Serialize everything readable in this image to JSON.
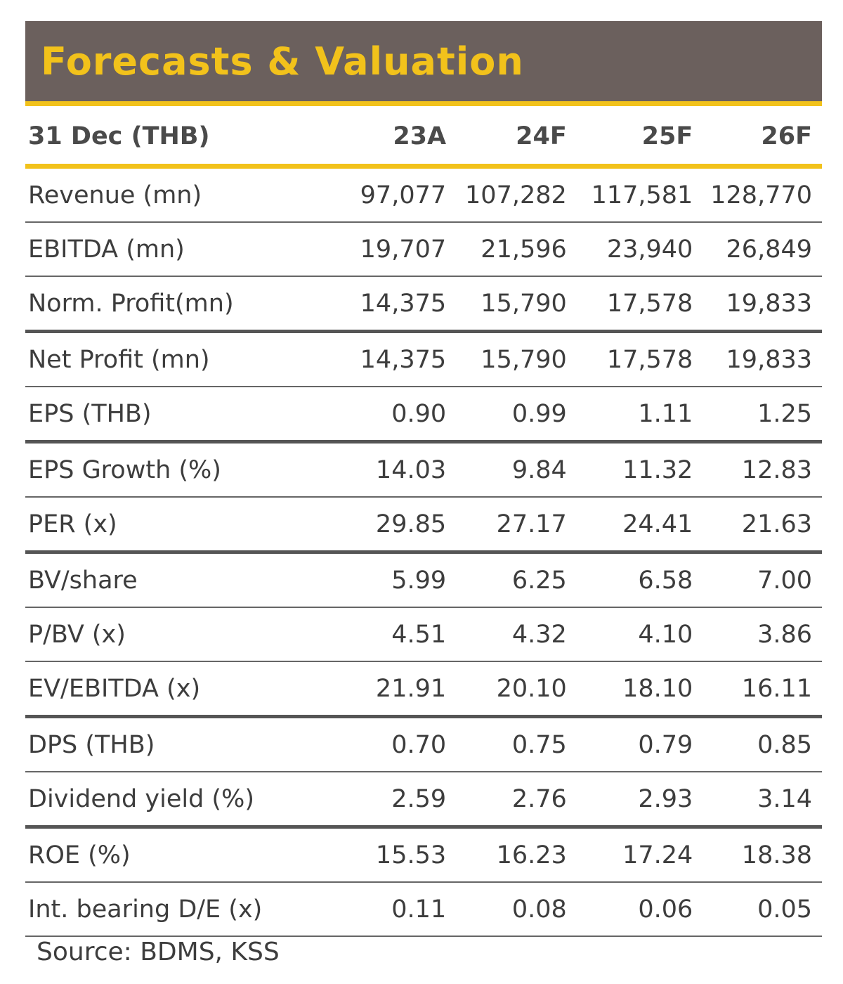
{
  "title": "Forecasts & Valuation",
  "header": {
    "label": "31 Dec (THB)",
    "columns": [
      "23A",
      "24F",
      "25F",
      "26F"
    ]
  },
  "rows": [
    {
      "label": "Revenue (mn)",
      "values": [
        "97,077",
        "107,282",
        "117,581",
        "128,770"
      ]
    },
    {
      "label": "EBITDA (mn)",
      "values": [
        "19,707",
        "21,596",
        "23,940",
        "26,849"
      ]
    },
    {
      "label": "Norm. Profit(mn)",
      "values": [
        "14,375",
        "15,790",
        "17,578",
        "19,833"
      ]
    },
    {
      "label": "Net Profit (mn)",
      "values": [
        "14,375",
        "15,790",
        "17,578",
        "19,833"
      ]
    },
    {
      "label": "EPS (THB)",
      "values": [
        "0.90",
        "0.99",
        "1.11",
        "1.25"
      ]
    },
    {
      "label": "EPS Growth (%)",
      "values": [
        "14.03",
        "9.84",
        "11.32",
        "12.83"
      ]
    },
    {
      "label": "PER (x)",
      "values": [
        "29.85",
        "27.17",
        "24.41",
        "21.63"
      ]
    },
    {
      "label": "BV/share",
      "values": [
        "5.99",
        "6.25",
        "6.58",
        "7.00"
      ]
    },
    {
      "label": "P/BV (x)",
      "values": [
        "4.51",
        "4.32",
        "4.10",
        "3.86"
      ]
    },
    {
      "label": "EV/EBITDA (x)",
      "values": [
        "21.91",
        "20.10",
        "18.10",
        "16.11"
      ]
    },
    {
      "label": "DPS (THB)",
      "values": [
        "0.70",
        "0.75",
        "0.79",
        "0.85"
      ]
    },
    {
      "label": "Dividend yield (%)",
      "values": [
        "2.59",
        "2.76",
        "2.93",
        "3.14"
      ]
    },
    {
      "label": "ROE (%)",
      "values": [
        "15.53",
        "16.23",
        "17.24",
        "18.38"
      ]
    },
    {
      "label": "Int. bearing D/E (x)",
      "values": [
        "0.11",
        "0.08",
        "0.06",
        "0.05"
      ]
    }
  ],
  "source": "Source: BDMS, KSS",
  "colors": {
    "band": "#6b605d",
    "accent": "#f2c21b"
  }
}
